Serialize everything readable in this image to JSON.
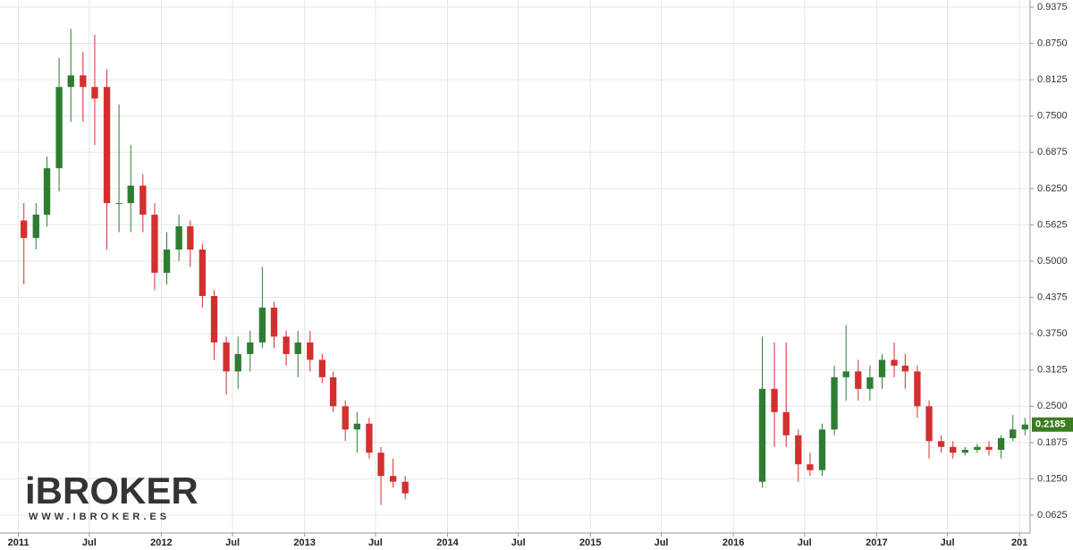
{
  "chart_data": {
    "type": "candlestick",
    "x": [
      "2011-01",
      "2011-02",
      "2011-03",
      "2011-04",
      "2011-05",
      "2011-06",
      "2011-07",
      "2011-08",
      "2011-09",
      "2011-10",
      "2011-11",
      "2011-12",
      "2012-01",
      "2012-02",
      "2012-03",
      "2012-04",
      "2012-05",
      "2012-06",
      "2012-07",
      "2012-08",
      "2012-09",
      "2012-10",
      "2012-11",
      "2012-12",
      "2013-01",
      "2013-02",
      "2013-03",
      "2013-04",
      "2013-05",
      "2013-06",
      "2013-07",
      "2013-08",
      "2013-09",
      "2016-03",
      "2016-04",
      "2016-05",
      "2016-06",
      "2016-07",
      "2016-08",
      "2016-09",
      "2016-10",
      "2016-11",
      "2016-12",
      "2017-01",
      "2017-02",
      "2017-03",
      "2017-04",
      "2017-05",
      "2017-06",
      "2017-07",
      "2017-08",
      "2017-09",
      "2017-10",
      "2017-11",
      "2017-12",
      "2018-01"
    ],
    "open": [
      0.57,
      0.54,
      0.58,
      0.66,
      0.8,
      0.82,
      0.8,
      0.8,
      0.6,
      0.6,
      0.63,
      0.58,
      0.48,
      0.52,
      0.56,
      0.52,
      0.44,
      0.36,
      0.31,
      0.34,
      0.36,
      0.42,
      0.37,
      0.34,
      0.36,
      0.33,
      0.3,
      0.25,
      0.21,
      0.22,
      0.17,
      0.13,
      0.12,
      0.12,
      0.28,
      0.24,
      0.2,
      0.15,
      0.14,
      0.21,
      0.3,
      0.31,
      0.28,
      0.3,
      0.33,
      0.32,
      0.31,
      0.25,
      0.19,
      0.18,
      0.17,
      0.175,
      0.18,
      0.175,
      0.195,
      0.21
    ],
    "high": [
      0.6,
      0.6,
      0.68,
      0.85,
      0.9,
      0.86,
      0.89,
      0.83,
      0.77,
      0.7,
      0.65,
      0.6,
      0.55,
      0.58,
      0.57,
      0.53,
      0.45,
      0.37,
      0.37,
      0.38,
      0.49,
      0.43,
      0.38,
      0.38,
      0.38,
      0.34,
      0.31,
      0.26,
      0.24,
      0.23,
      0.18,
      0.16,
      0.13,
      0.37,
      0.36,
      0.36,
      0.21,
      0.17,
      0.22,
      0.32,
      0.39,
      0.33,
      0.32,
      0.34,
      0.36,
      0.34,
      0.32,
      0.26,
      0.2,
      0.19,
      0.18,
      0.185,
      0.19,
      0.2,
      0.235,
      0.23
    ],
    "low": [
      0.46,
      0.52,
      0.56,
      0.62,
      0.74,
      0.74,
      0.7,
      0.52,
      0.55,
      0.55,
      0.55,
      0.45,
      0.46,
      0.5,
      0.49,
      0.42,
      0.33,
      0.27,
      0.28,
      0.31,
      0.35,
      0.35,
      0.32,
      0.3,
      0.31,
      0.29,
      0.24,
      0.19,
      0.17,
      0.16,
      0.08,
      0.11,
      0.09,
      0.11,
      0.18,
      0.18,
      0.12,
      0.13,
      0.13,
      0.2,
      0.26,
      0.26,
      0.26,
      0.28,
      0.3,
      0.28,
      0.23,
      0.16,
      0.17,
      0.16,
      0.165,
      0.17,
      0.165,
      0.16,
      0.19,
      0.2
    ],
    "close": [
      0.54,
      0.58,
      0.66,
      0.8,
      0.82,
      0.8,
      0.78,
      0.6,
      0.6,
      0.63,
      0.58,
      0.48,
      0.52,
      0.56,
      0.52,
      0.44,
      0.36,
      0.31,
      0.34,
      0.36,
      0.42,
      0.37,
      0.34,
      0.36,
      0.33,
      0.3,
      0.25,
      0.21,
      0.22,
      0.17,
      0.13,
      0.12,
      0.1,
      0.28,
      0.24,
      0.2,
      0.15,
      0.14,
      0.21,
      0.3,
      0.31,
      0.28,
      0.3,
      0.33,
      0.32,
      0.31,
      0.25,
      0.19,
      0.18,
      0.17,
      0.175,
      0.18,
      0.175,
      0.195,
      0.21,
      0.2185
    ],
    "up_color": "#2e7d32",
    "down_color": "#d32f2f",
    "xlim": [
      "2010-11-15",
      "2018-01-28"
    ],
    "xticks": [
      {
        "value": "2011-01-01",
        "label": "2011"
      },
      {
        "value": "2011-07-01",
        "label": "Jul"
      },
      {
        "value": "2012-01-01",
        "label": "2012"
      },
      {
        "value": "2012-07-01",
        "label": "Jul"
      },
      {
        "value": "2013-01-01",
        "label": "2013"
      },
      {
        "value": "2013-07-01",
        "label": "Jul"
      },
      {
        "value": "2014-01-01",
        "label": "2014"
      },
      {
        "value": "2014-07-01",
        "label": "Jul"
      },
      {
        "value": "2015-01-01",
        "label": "2015"
      },
      {
        "value": "2015-07-01",
        "label": "Jul"
      },
      {
        "value": "2016-01-01",
        "label": "2016"
      },
      {
        "value": "2016-07-01",
        "label": "Jul"
      },
      {
        "value": "2017-01-01",
        "label": "2017"
      },
      {
        "value": "2017-07-01",
        "label": "Jul"
      },
      {
        "value": "2018-01-01",
        "label": "201"
      }
    ],
    "ylim": [
      0.0317,
      0.9498
    ],
    "yticks": [
      0.0625,
      {
        "value": 0.125,
        "label": "0.1250"
      },
      0.1875,
      {
        "value": 0.25,
        "label": "0.2500"
      },
      0.3125,
      {
        "value": 0.375,
        "label": "0.3750"
      },
      0.4375,
      {
        "value": 0.5,
        "label": "0.5000"
      },
      0.5625,
      {
        "value": 0.625,
        "label": "0.6250"
      },
      0.6875,
      {
        "value": 0.75,
        "label": "0.7500"
      },
      0.8125,
      {
        "value": 0.875,
        "label": "0.8750"
      },
      0.9375
    ],
    "grid": true,
    "last_price": 0.2185,
    "last_price_color": "#3a7d1e",
    "watermark": {
      "logo": "iBROKER",
      "url": "WWW.IBROKER.ES"
    }
  }
}
